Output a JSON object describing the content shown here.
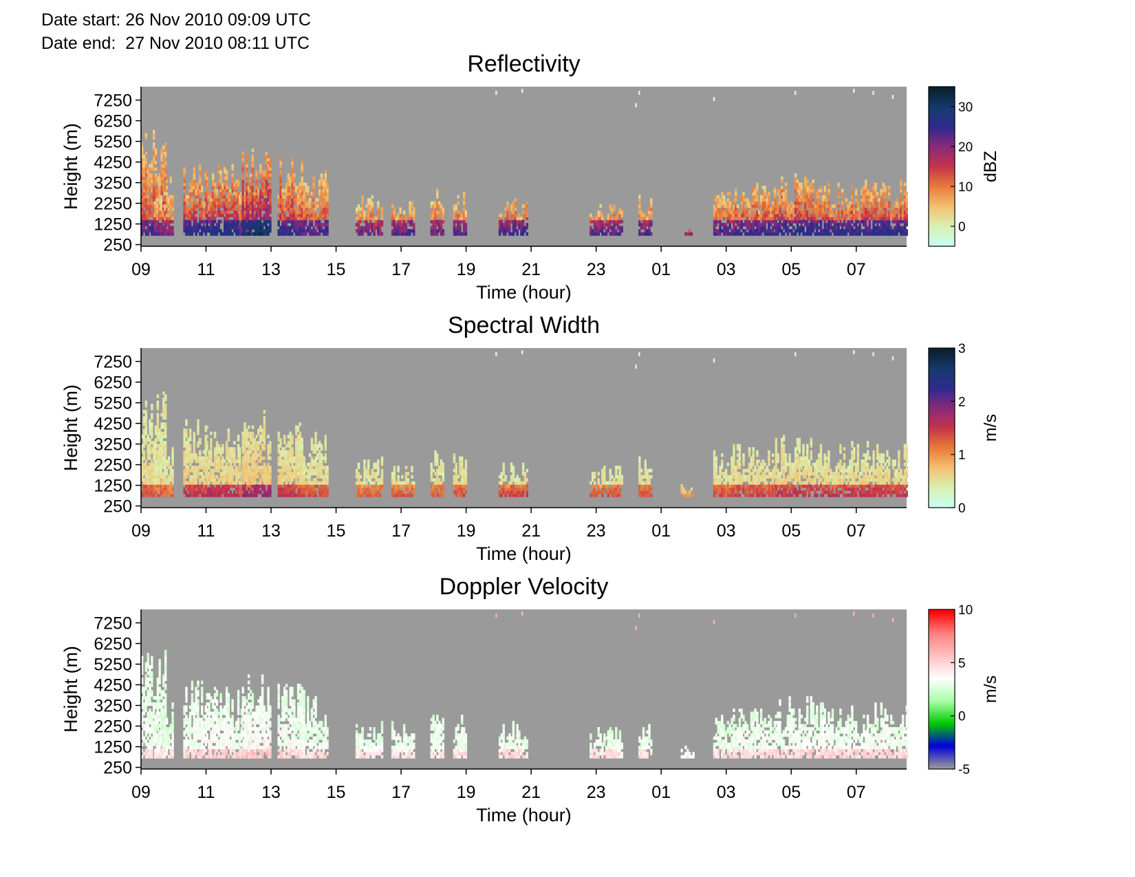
{
  "header": {
    "date_start": "Date start: 26 Nov 2010 09:09 UTC",
    "date_end": "Date end:  27 Nov 2010 08:11 UTC"
  },
  "chart_data": [
    {
      "type": "heatmap",
      "title": "Reflectivity",
      "xlabel": "Time (hour)",
      "ylabel": "Height (m)",
      "x_tick_labels": [
        "09",
        "11",
        "13",
        "15",
        "17",
        "19",
        "21",
        "23",
        "01",
        "03",
        "05",
        "07"
      ],
      "x_range_hours_since_09": [
        0,
        23.55
      ],
      "y_ticks": [
        250,
        1250,
        2250,
        3250,
        4250,
        5250,
        6250,
        7250
      ],
      "ylim": [
        170,
        7900
      ],
      "colorbar": {
        "label": "dBZ",
        "ticks": [
          0,
          10,
          20,
          30
        ],
        "range": [
          -5,
          35
        ],
        "colors": [
          "#c8fff0",
          "#d9f0b0",
          "#f2c070",
          "#e87a3a",
          "#c6344a",
          "#8a2a78",
          "#2f2a8f",
          "#143a6e",
          "#0a1f2a"
        ]
      },
      "background_color": "#9a9a9a"
    },
    {
      "type": "heatmap",
      "title": "Spectral Width",
      "xlabel": "Time (hour)",
      "ylabel": "Height (m)",
      "x_tick_labels": [
        "09",
        "11",
        "13",
        "15",
        "17",
        "19",
        "21",
        "23",
        "01",
        "03",
        "05",
        "07"
      ],
      "x_range_hours_since_09": [
        0,
        23.55
      ],
      "y_ticks": [
        250,
        1250,
        2250,
        3250,
        4250,
        5250,
        6250,
        7250
      ],
      "ylim": [
        170,
        7900
      ],
      "colorbar": {
        "label": "m/s",
        "ticks": [
          0,
          1,
          2,
          3
        ],
        "range": [
          0,
          3
        ],
        "colors": [
          "#c8fff0",
          "#d9f0b0",
          "#f2c070",
          "#e87a3a",
          "#c6344a",
          "#8a2a78",
          "#2f2a8f",
          "#143a6e",
          "#0a1f2a"
        ]
      },
      "background_color": "#9a9a9a"
    },
    {
      "type": "heatmap",
      "title": "Doppler Velocity",
      "xlabel": "Time (hour)",
      "ylabel": "Height (m)",
      "x_tick_labels": [
        "09",
        "11",
        "13",
        "15",
        "17",
        "19",
        "21",
        "23",
        "01",
        "03",
        "05",
        "07"
      ],
      "x_range_hours_since_09": [
        0,
        23.55
      ],
      "y_ticks": [
        250,
        1250,
        2250,
        3250,
        4250,
        5250,
        6250,
        7250
      ],
      "ylim": [
        170,
        7900
      ],
      "colorbar": {
        "label": "m/s",
        "ticks": [
          -5,
          0,
          5,
          10
        ],
        "range": [
          -5,
          10
        ],
        "colors": [
          "#9a9a9a",
          "#0000dd",
          "#00cc00",
          "#aaffaa",
          "#ffffff",
          "#ffc0c0",
          "#ff8080",
          "#ff0000"
        ]
      },
      "background_color": "#9a9a9a"
    }
  ]
}
